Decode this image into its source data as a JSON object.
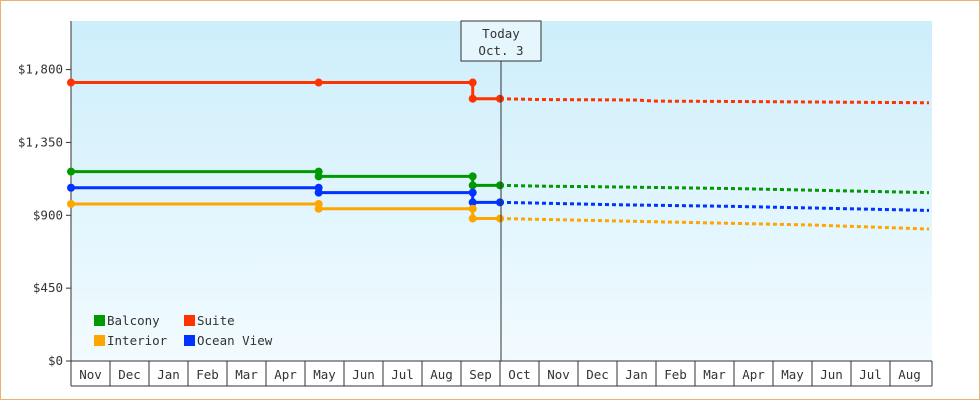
{
  "chart_data": {
    "type": "line",
    "y_axis": {
      "ticks": [
        "$0",
        "$450",
        "$900",
        "$1,350",
        "$1,800"
      ],
      "tick_values": [
        0,
        450,
        900,
        1350,
        1800
      ],
      "ylim": [
        0,
        2100
      ]
    },
    "x_axis": {
      "categories": [
        "Nov",
        "Dec",
        "Jan",
        "Feb",
        "Mar",
        "Apr",
        "May",
        "Jun",
        "Jul",
        "Aug",
        "Sep",
        "Oct",
        "Nov",
        "Dec",
        "Jan",
        "Feb",
        "Mar",
        "Apr",
        "May",
        "Jun",
        "Jul",
        "Aug"
      ]
    },
    "today_marker": {
      "line1": "Today",
      "line2": "Oct. 3",
      "x": 11.0
    },
    "legend": {
      "placement": "bottom-left",
      "items": [
        {
          "label": "Balcony",
          "color": "#009900"
        },
        {
          "label": "Suite",
          "color": "#ff3300"
        },
        {
          "label": "Interior",
          "color": "#ffa500"
        },
        {
          "label": "Ocean View",
          "color": "#0033ff"
        }
      ]
    },
    "series": [
      {
        "name": "Suite",
        "color": "#ff3300",
        "solid": [
          [
            0,
            1720
          ],
          [
            6.35,
            1720
          ],
          [
            6.35,
            1720
          ],
          [
            10.3,
            1720
          ],
          [
            10.3,
            1620
          ],
          [
            11,
            1620
          ]
        ],
        "points": [
          [
            0,
            1720
          ],
          [
            6.35,
            1720
          ],
          [
            10.3,
            1720
          ],
          [
            10.3,
            1620
          ],
          [
            11,
            1620
          ]
        ],
        "dashed": [
          [
            11,
            1620
          ],
          [
            12,
            1615
          ],
          [
            14.5,
            1612
          ],
          [
            15,
            1605
          ],
          [
            17,
            1603
          ],
          [
            22,
            1595
          ]
        ]
      },
      {
        "name": "Balcony",
        "color": "#009900",
        "solid": [
          [
            0,
            1170
          ],
          [
            6.35,
            1170
          ],
          [
            6.35,
            1140
          ],
          [
            10.3,
            1140
          ],
          [
            10.3,
            1085
          ],
          [
            11,
            1085
          ]
        ],
        "points": [
          [
            0,
            1170
          ],
          [
            6.35,
            1170
          ],
          [
            6.35,
            1140
          ],
          [
            10.3,
            1140
          ],
          [
            10.3,
            1085
          ],
          [
            11,
            1085
          ]
        ],
        "dashed": [
          [
            11,
            1085
          ],
          [
            12,
            1080
          ],
          [
            14,
            1075
          ],
          [
            17,
            1065
          ],
          [
            19,
            1055
          ],
          [
            22,
            1040
          ]
        ]
      },
      {
        "name": "Ocean View",
        "color": "#0033ff",
        "solid": [
          [
            0,
            1070
          ],
          [
            6.35,
            1070
          ],
          [
            6.35,
            1040
          ],
          [
            10.3,
            1040
          ],
          [
            10.3,
            980
          ],
          [
            11,
            980
          ]
        ],
        "points": [
          [
            0,
            1070
          ],
          [
            6.35,
            1070
          ],
          [
            6.35,
            1040
          ],
          [
            10.3,
            1040
          ],
          [
            10.3,
            980
          ],
          [
            11,
            980
          ]
        ],
        "dashed": [
          [
            11,
            980
          ],
          [
            12,
            975
          ],
          [
            14,
            965
          ],
          [
            17,
            955
          ],
          [
            19,
            945
          ],
          [
            22,
            930
          ]
        ]
      },
      {
        "name": "Interior",
        "color": "#ffa500",
        "solid": [
          [
            0,
            970
          ],
          [
            6.35,
            970
          ],
          [
            6.35,
            940
          ],
          [
            10.3,
            940
          ],
          [
            10.3,
            880
          ],
          [
            11,
            880
          ]
        ],
        "points": [
          [
            0,
            970
          ],
          [
            6.35,
            970
          ],
          [
            6.35,
            940
          ],
          [
            10.3,
            940
          ],
          [
            10.3,
            880
          ],
          [
            11,
            880
          ]
        ],
        "dashed": [
          [
            11,
            880
          ],
          [
            12,
            875
          ],
          [
            14,
            865
          ],
          [
            17,
            850
          ],
          [
            19,
            840
          ],
          [
            22,
            815
          ]
        ]
      }
    ]
  }
}
